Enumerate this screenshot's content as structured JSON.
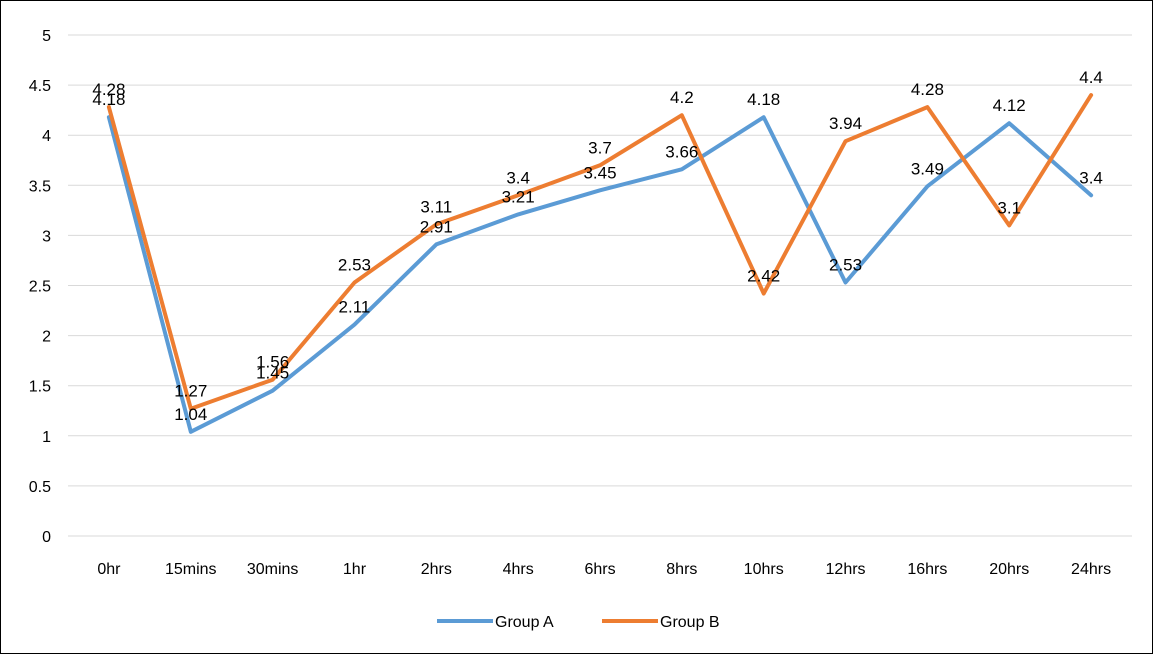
{
  "chart_data": {
    "type": "line",
    "categories": [
      "0hr",
      "15mins",
      "30mins",
      "1hr",
      "2hrs",
      "4hrs",
      "6hrs",
      "8hrs",
      "10hrs",
      "12hrs",
      "16hrs",
      "20hrs",
      "24hrs"
    ],
    "series": [
      {
        "name": "Group A",
        "color": "#5B9BD5",
        "values": [
          4.18,
          1.04,
          1.45,
          2.11,
          2.91,
          3.21,
          3.45,
          3.66,
          4.18,
          2.53,
          3.49,
          4.12,
          3.4
        ]
      },
      {
        "name": "Group B",
        "color": "#ED7D31",
        "values": [
          4.28,
          1.27,
          1.56,
          2.53,
          3.11,
          3.4,
          3.7,
          4.2,
          2.42,
          3.94,
          4.28,
          3.1,
          4.4
        ]
      }
    ],
    "y_ticks": [
      "0",
      "0.5",
      "1",
      "1.5",
      "2",
      "2.5",
      "3",
      "3.5",
      "4",
      "4.5",
      "5"
    ],
    "ylim": [
      0,
      5
    ],
    "grid": true,
    "legend_position": "bottom",
    "data_labels": true,
    "title": "",
    "xlabel": "",
    "ylabel": ""
  }
}
